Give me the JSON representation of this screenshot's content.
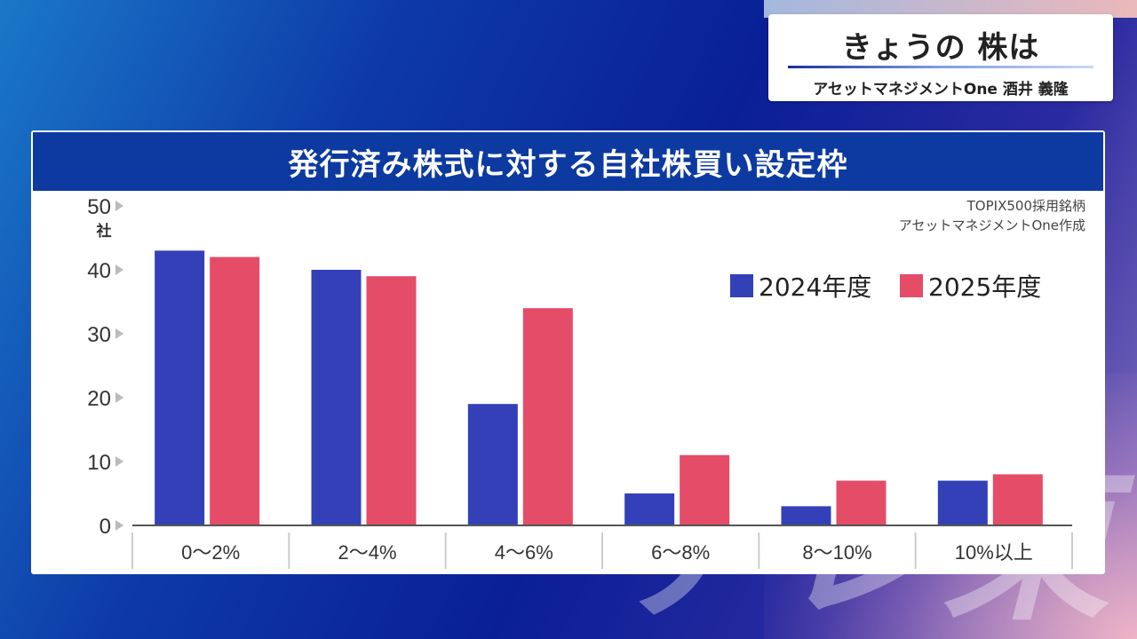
{
  "caption": {
    "title": "きょうの 株は",
    "subtitle": "アセットマネジメントOne 酒井 義隆"
  },
  "panel": {
    "title": "発行済み株式に対する自社株買い設定枠",
    "source_line1": "TOPIX500採用銘柄",
    "source_line2": "アセットマネジメントOne作成"
  },
  "watermark": "テレ東",
  "colors": {
    "series_2024": "#3340b8",
    "series_2025": "#e44c68",
    "header": "#0c3aa0"
  },
  "chart_data": {
    "type": "bar",
    "title": "発行済み株式に対する自社株買い設定枠",
    "ylabel": "社",
    "categories": [
      "0〜2%",
      "2〜4%",
      "4〜6%",
      "6〜8%",
      "8〜10%",
      "10%以上"
    ],
    "series": [
      {
        "name": "2024年度",
        "values": [
          43,
          40,
          19,
          5,
          3,
          7
        ]
      },
      {
        "name": "2025年度",
        "values": [
          42,
          39,
          34,
          11,
          7,
          8
        ]
      }
    ],
    "ylim": [
      0,
      50
    ],
    "yticks": [
      0,
      10,
      20,
      30,
      40,
      50
    ],
    "grid": false,
    "legend": "top-right"
  }
}
